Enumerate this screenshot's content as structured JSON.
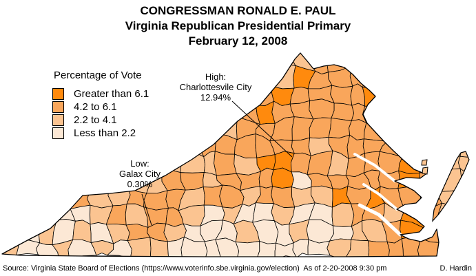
{
  "title": {
    "line1": "CONGRESSMAN RONALD E. PAUL",
    "line2": "Virginia Republican Presidential Primary",
    "line3": "February 12, 2008"
  },
  "legend": {
    "title": "Percentage of Vote",
    "items": [
      {
        "label": "Greater than 6.1",
        "color": "#FF8A0D"
      },
      {
        "label": "4.2 to 6.1",
        "color": "#F9A65B"
      },
      {
        "label": "2.2 to 4.1",
        "color": "#FBC491"
      },
      {
        "label": "Less than 2.2",
        "color": "#FCE8D5"
      }
    ]
  },
  "annotations": {
    "high": {
      "line1": "High:",
      "line2": "Charlottesvile City",
      "line3": "12.94%"
    },
    "low": {
      "line1": "Low:",
      "line2": "Galax City",
      "line3": "0.30%"
    }
  },
  "footer": {
    "source": "Source: Virginia State Board of Elections (https://www.voterinfo.sbe.virginia.gov/election)  As of 2-20-2008 9:30 pm",
    "author": "D. Hardin"
  },
  "map": {
    "region": "Virginia counties and independent cities",
    "border_color": "#000000",
    "water_color": "#ffffff",
    "cell_classes_note": "0=Less than 2.2, 1=2.2 to 4.1, 2=4.2 to 6.1, 3=Greater than 6.1",
    "cell_classes": [
      [
        1,
        1,
        1,
        1,
        1,
        1,
        1,
        1,
        1,
        1,
        1,
        1,
        1,
        1,
        1,
        1,
        1,
        2,
        2,
        1,
        1,
        1,
        1,
        1,
        1,
        1
      ],
      [
        1,
        1,
        1,
        1,
        1,
        1,
        1,
        1,
        1,
        1,
        1,
        1,
        1,
        1,
        2,
        1,
        3,
        2,
        2,
        2,
        2,
        1,
        1,
        1,
        1,
        1
      ],
      [
        1,
        1,
        1,
        1,
        1,
        1,
        1,
        1,
        1,
        1,
        1,
        1,
        1,
        2,
        2,
        3,
        2,
        2,
        2,
        2,
        3,
        2,
        1,
        1,
        1,
        1
      ],
      [
        1,
        1,
        1,
        1,
        1,
        1,
        1,
        1,
        1,
        1,
        1,
        1,
        2,
        2,
        3,
        2,
        2,
        2,
        2,
        2,
        2,
        2,
        1,
        1,
        1,
        1
      ],
      [
        1,
        1,
        1,
        1,
        1,
        1,
        1,
        1,
        1,
        2,
        1,
        1,
        1,
        2,
        2,
        2,
        2,
        2,
        2,
        2,
        2,
        2,
        2,
        1,
        1,
        1
      ],
      [
        1,
        1,
        1,
        1,
        1,
        1,
        1,
        1,
        2,
        1,
        1,
        2,
        2,
        2,
        2,
        2,
        2,
        1,
        2,
        2,
        2,
        2,
        2,
        2,
        1,
        1
      ],
      [
        1,
        1,
        1,
        1,
        1,
        1,
        1,
        2,
        1,
        1,
        1,
        1,
        2,
        1,
        3,
        3,
        2,
        2,
        1,
        2,
        2,
        2,
        3,
        2,
        1,
        1
      ],
      [
        1,
        1,
        1,
        1,
        1,
        1,
        2,
        1,
        1,
        2,
        2,
        1,
        2,
        2,
        2,
        3,
        0,
        2,
        2,
        2,
        2,
        2,
        3,
        2,
        1,
        1
      ],
      [
        1,
        1,
        0,
        1,
        2,
        1,
        1,
        2,
        2,
        2,
        1,
        2,
        2,
        1,
        2,
        2,
        1,
        1,
        3,
        2,
        3,
        2,
        2,
        2,
        1,
        1
      ],
      [
        0,
        1,
        2,
        0,
        0,
        1,
        2,
        1,
        2,
        2,
        1,
        0,
        1,
        0,
        0,
        1,
        0,
        0,
        1,
        2,
        2,
        1,
        3,
        2,
        1,
        1
      ],
      [
        0,
        0,
        1,
        0,
        1,
        0,
        1,
        2,
        2,
        1,
        0,
        0,
        0,
        1,
        0,
        0,
        1,
        0,
        0,
        1,
        1,
        2,
        3,
        2,
        1,
        1
      ],
      [
        1,
        0,
        0,
        1,
        0,
        1,
        0,
        1,
        1,
        0,
        0,
        0,
        0,
        0,
        0,
        0,
        0,
        0,
        1,
        1,
        2,
        2,
        2,
        2,
        1,
        1
      ]
    ]
  }
}
